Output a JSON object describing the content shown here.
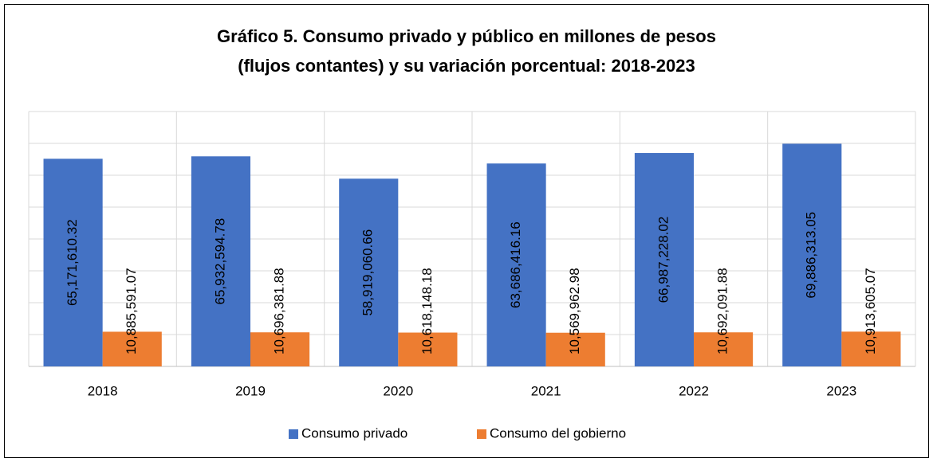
{
  "chart_data": {
    "type": "bar",
    "title": [
      "Gráfico 5. Consumo privado y público en millones de pesos",
      "(flujos contantes) y su variación porcentual: 2018-2023"
    ],
    "categories": [
      "2018",
      "2019",
      "2020",
      "2021",
      "2022",
      "2023"
    ],
    "series": [
      {
        "name": "Consumo privado",
        "color": "#4472c4",
        "values": [
          65171610.32,
          65932594.78,
          58919060.66,
          63686416.16,
          66987228.02,
          69886313.05
        ],
        "value_labels": [
          "65,171,610.32",
          "65,932,594.78",
          "58,919,060.66",
          "63,686,416.16",
          "66,987,228.02",
          "69,886,313.05"
        ]
      },
      {
        "name": "Consumo del gobierno",
        "color": "#ed7d31",
        "values": [
          10885591.07,
          10696381.88,
          10618148.18,
          10569962.98,
          10692091.88,
          10913605.07
        ],
        "value_labels": [
          "10,885,591.07",
          "10,696,381.88",
          "10,618,148.18",
          "10,569,962.98",
          "10,692,091.88",
          "10,913,605.07"
        ]
      }
    ],
    "ylim": [
      0,
      80000000
    ],
    "yticks": [
      0,
      10000000,
      20000000,
      30000000,
      40000000,
      50000000,
      60000000,
      70000000,
      80000000
    ],
    "grid": true,
    "legend": "bottom"
  }
}
